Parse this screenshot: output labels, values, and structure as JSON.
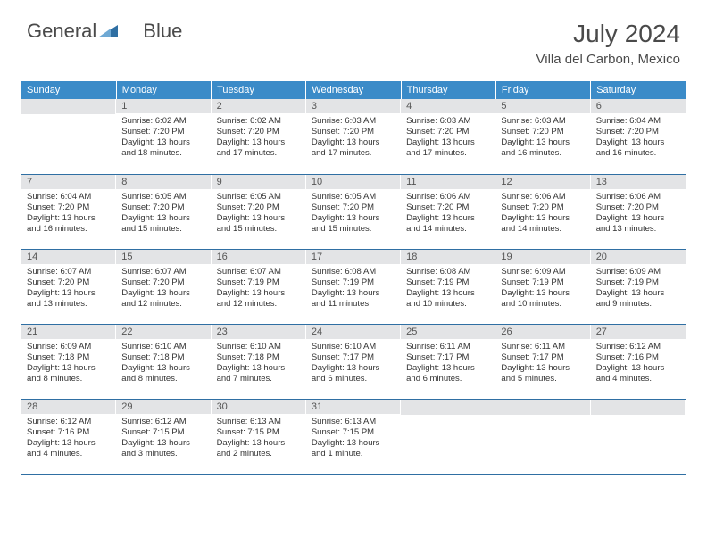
{
  "logo": {
    "text1": "General",
    "text2": "Blue"
  },
  "title": "July 2024",
  "subtitle": "Villa del Carbon, Mexico",
  "colors": {
    "header_bg": "#3b8bc8",
    "header_text": "#ffffff",
    "daynum_bg": "#e3e4e6",
    "border": "#2f6fa3",
    "logo_blue": "#2f6fa3",
    "text": "#333333"
  },
  "weekdays": [
    "Sunday",
    "Monday",
    "Tuesday",
    "Wednesday",
    "Thursday",
    "Friday",
    "Saturday"
  ],
  "weeks": [
    [
      null,
      {
        "n": "1",
        "sr": "6:02 AM",
        "ss": "7:20 PM",
        "d": "13 hours and 18 minutes."
      },
      {
        "n": "2",
        "sr": "6:02 AM",
        "ss": "7:20 PM",
        "d": "13 hours and 17 minutes."
      },
      {
        "n": "3",
        "sr": "6:03 AM",
        "ss": "7:20 PM",
        "d": "13 hours and 17 minutes."
      },
      {
        "n": "4",
        "sr": "6:03 AM",
        "ss": "7:20 PM",
        "d": "13 hours and 17 minutes."
      },
      {
        "n": "5",
        "sr": "6:03 AM",
        "ss": "7:20 PM",
        "d": "13 hours and 16 minutes."
      },
      {
        "n": "6",
        "sr": "6:04 AM",
        "ss": "7:20 PM",
        "d": "13 hours and 16 minutes."
      }
    ],
    [
      {
        "n": "7",
        "sr": "6:04 AM",
        "ss": "7:20 PM",
        "d": "13 hours and 16 minutes."
      },
      {
        "n": "8",
        "sr": "6:05 AM",
        "ss": "7:20 PM",
        "d": "13 hours and 15 minutes."
      },
      {
        "n": "9",
        "sr": "6:05 AM",
        "ss": "7:20 PM",
        "d": "13 hours and 15 minutes."
      },
      {
        "n": "10",
        "sr": "6:05 AM",
        "ss": "7:20 PM",
        "d": "13 hours and 15 minutes."
      },
      {
        "n": "11",
        "sr": "6:06 AM",
        "ss": "7:20 PM",
        "d": "13 hours and 14 minutes."
      },
      {
        "n": "12",
        "sr": "6:06 AM",
        "ss": "7:20 PM",
        "d": "13 hours and 14 minutes."
      },
      {
        "n": "13",
        "sr": "6:06 AM",
        "ss": "7:20 PM",
        "d": "13 hours and 13 minutes."
      }
    ],
    [
      {
        "n": "14",
        "sr": "6:07 AM",
        "ss": "7:20 PM",
        "d": "13 hours and 13 minutes."
      },
      {
        "n": "15",
        "sr": "6:07 AM",
        "ss": "7:20 PM",
        "d": "13 hours and 12 minutes."
      },
      {
        "n": "16",
        "sr": "6:07 AM",
        "ss": "7:19 PM",
        "d": "13 hours and 12 minutes."
      },
      {
        "n": "17",
        "sr": "6:08 AM",
        "ss": "7:19 PM",
        "d": "13 hours and 11 minutes."
      },
      {
        "n": "18",
        "sr": "6:08 AM",
        "ss": "7:19 PM",
        "d": "13 hours and 10 minutes."
      },
      {
        "n": "19",
        "sr": "6:09 AM",
        "ss": "7:19 PM",
        "d": "13 hours and 10 minutes."
      },
      {
        "n": "20",
        "sr": "6:09 AM",
        "ss": "7:19 PM",
        "d": "13 hours and 9 minutes."
      }
    ],
    [
      {
        "n": "21",
        "sr": "6:09 AM",
        "ss": "7:18 PM",
        "d": "13 hours and 8 minutes."
      },
      {
        "n": "22",
        "sr": "6:10 AM",
        "ss": "7:18 PM",
        "d": "13 hours and 8 minutes."
      },
      {
        "n": "23",
        "sr": "6:10 AM",
        "ss": "7:18 PM",
        "d": "13 hours and 7 minutes."
      },
      {
        "n": "24",
        "sr": "6:10 AM",
        "ss": "7:17 PM",
        "d": "13 hours and 6 minutes."
      },
      {
        "n": "25",
        "sr": "6:11 AM",
        "ss": "7:17 PM",
        "d": "13 hours and 6 minutes."
      },
      {
        "n": "26",
        "sr": "6:11 AM",
        "ss": "7:17 PM",
        "d": "13 hours and 5 minutes."
      },
      {
        "n": "27",
        "sr": "6:12 AM",
        "ss": "7:16 PM",
        "d": "13 hours and 4 minutes."
      }
    ],
    [
      {
        "n": "28",
        "sr": "6:12 AM",
        "ss": "7:16 PM",
        "d": "13 hours and 4 minutes."
      },
      {
        "n": "29",
        "sr": "6:12 AM",
        "ss": "7:15 PM",
        "d": "13 hours and 3 minutes."
      },
      {
        "n": "30",
        "sr": "6:13 AM",
        "ss": "7:15 PM",
        "d": "13 hours and 2 minutes."
      },
      {
        "n": "31",
        "sr": "6:13 AM",
        "ss": "7:15 PM",
        "d": "13 hours and 1 minute."
      },
      null,
      null,
      null
    ]
  ],
  "labels": {
    "sunrise": "Sunrise:",
    "sunset": "Sunset:",
    "daylight": "Daylight:"
  }
}
